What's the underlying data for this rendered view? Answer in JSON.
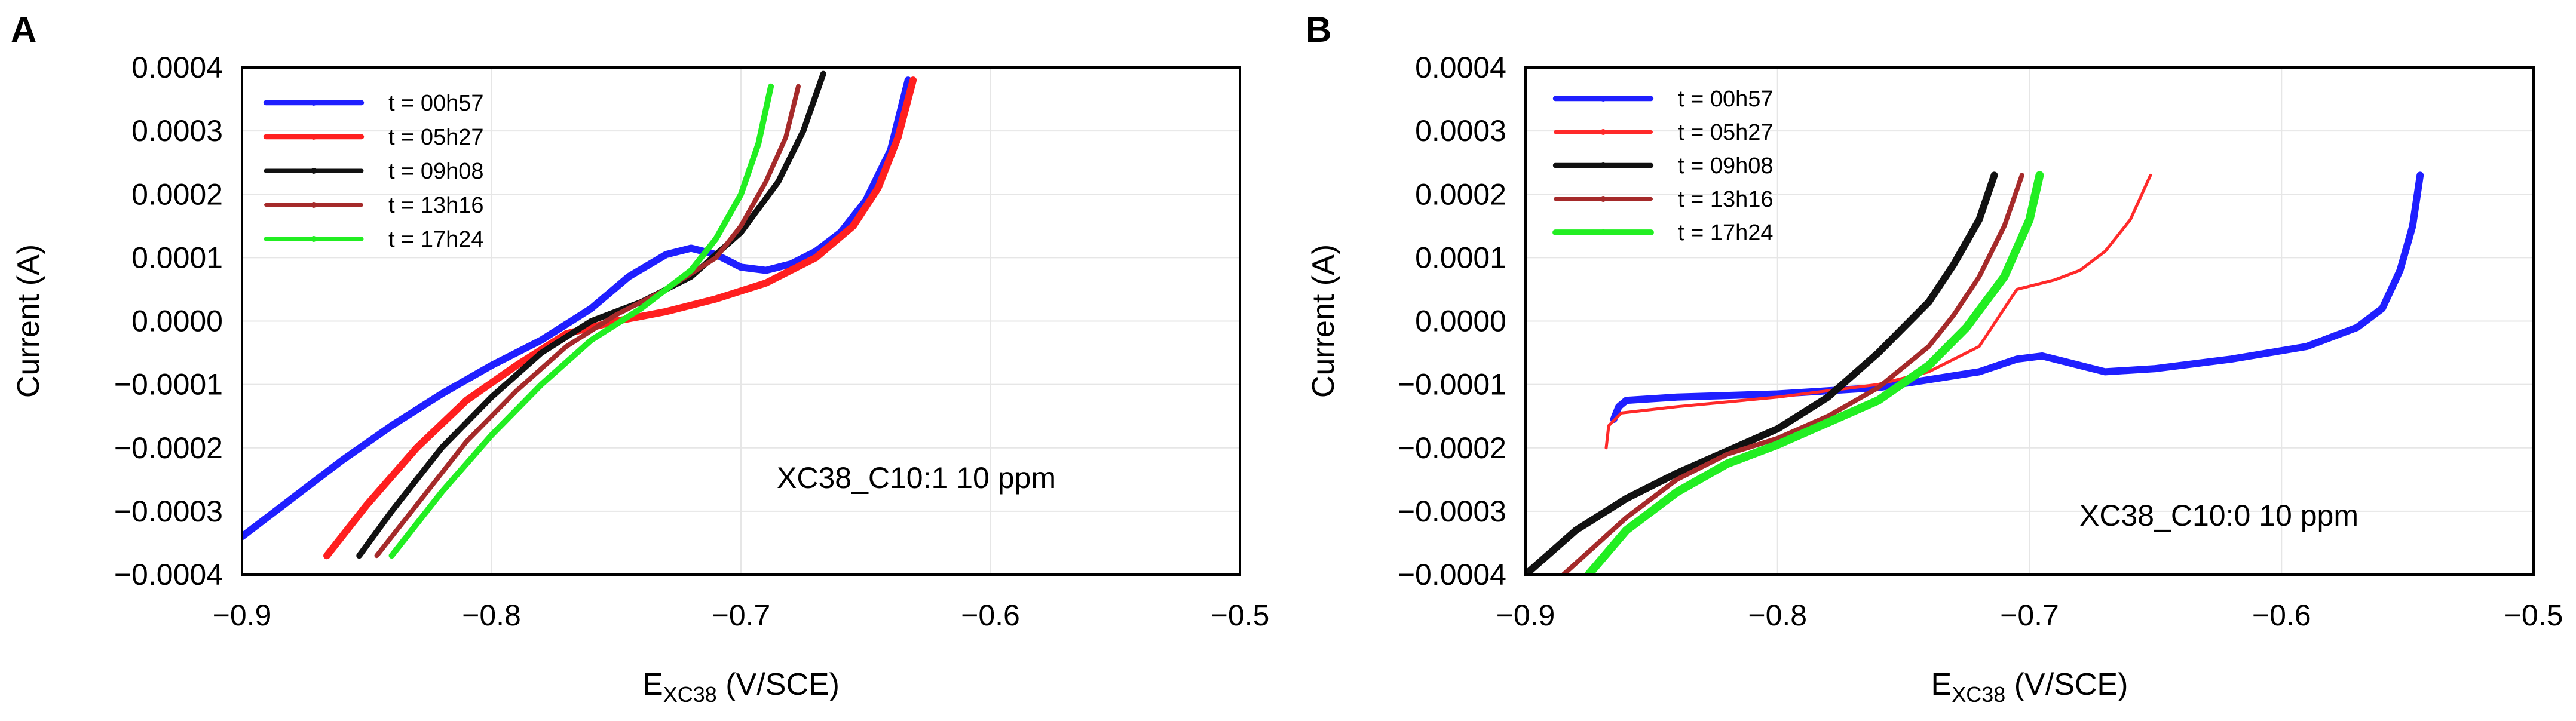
{
  "chart_data": [
    {
      "panel_label": "A",
      "type": "line",
      "xlabel_main": "E",
      "xlabel_sub": "XC38",
      "xlabel_unit": " (V/SCE)",
      "ylabel": "Current (A)",
      "annotation": "XC38_C10:1 10 ppm",
      "xlim": [
        -0.9,
        -0.5
      ],
      "ylim": [
        -0.0004,
        0.0004
      ],
      "x_ticks": [
        "−0.9",
        "−0.8",
        "−0.7",
        "−0.6",
        "−0.5"
      ],
      "x_tick_values": [
        -0.9,
        -0.8,
        -0.7,
        -0.6,
        -0.5
      ],
      "y_ticks": [
        "0.0004",
        "0.0003",
        "0.0002",
        "0.0001",
        "0.0000",
        "−0.0001",
        "−0.0002",
        "−0.0003",
        "−0.0004"
      ],
      "y_tick_values": [
        0.0004,
        0.0003,
        0.0002,
        0.0001,
        0.0,
        -0.0001,
        -0.0002,
        -0.0003,
        -0.0004
      ],
      "legend": "top-left",
      "series": [
        {
          "name": "t = 00h57",
          "color": "#1f1fff",
          "width": 12,
          "x": [
            -0.9,
            -0.88,
            -0.86,
            -0.84,
            -0.82,
            -0.8,
            -0.78,
            -0.76,
            -0.745,
            -0.73,
            -0.72,
            -0.71,
            -0.7,
            -0.69,
            -0.68,
            -0.67,
            -0.66,
            -0.65,
            -0.64,
            -0.633
          ],
          "y": [
            -0.00034,
            -0.00028,
            -0.00022,
            -0.000165,
            -0.000115,
            -7e-05,
            -3e-05,
            2e-05,
            7e-05,
            0.000105,
            0.000115,
            0.000105,
            8.5e-05,
            8e-05,
            9e-05,
            0.00011,
            0.00014,
            0.00019,
            0.00027,
            0.00038
          ]
        },
        {
          "name": "t = 05h27",
          "color": "#ff1f1f",
          "width": 12,
          "x": [
            -0.866,
            -0.85,
            -0.83,
            -0.81,
            -0.79,
            -0.77,
            -0.75,
            -0.73,
            -0.71,
            -0.69,
            -0.67,
            -0.655,
            -0.645,
            -0.637,
            -0.631
          ],
          "y": [
            -0.00037,
            -0.00029,
            -0.0002,
            -0.000125,
            -7e-05,
            -2e-05,
            0.0,
            1.5e-05,
            3.5e-05,
            6e-05,
            0.0001,
            0.00015,
            0.00021,
            0.00029,
            0.00038
          ]
        },
        {
          "name": "t = 09h08",
          "color": "#111111",
          "width": 10,
          "x": [
            -0.853,
            -0.84,
            -0.82,
            -0.8,
            -0.78,
            -0.76,
            -0.74,
            -0.72,
            -0.7,
            -0.685,
            -0.675,
            -0.667
          ],
          "y": [
            -0.00037,
            -0.0003,
            -0.0002,
            -0.00012,
            -5e-05,
            0.0,
            3e-05,
            7e-05,
            0.00014,
            0.00022,
            0.0003,
            0.00039
          ]
        },
        {
          "name": "t = 13h16",
          "color": "#a52a2a",
          "width": 8,
          "x": [
            -0.846,
            -0.83,
            -0.81,
            -0.79,
            -0.77,
            -0.75,
            -0.73,
            -0.71,
            -0.7,
            -0.69,
            -0.682,
            -0.677
          ],
          "y": [
            -0.00037,
            -0.00029,
            -0.00019,
            -0.00011,
            -4e-05,
            1e-05,
            5e-05,
            0.0001,
            0.00015,
            0.00022,
            0.00029,
            0.00037
          ]
        },
        {
          "name": "t = 17h24",
          "color": "#22ee22",
          "width": 10,
          "x": [
            -0.84,
            -0.82,
            -0.8,
            -0.78,
            -0.76,
            -0.74,
            -0.72,
            -0.71,
            -0.7,
            -0.693,
            -0.688
          ],
          "y": [
            -0.00037,
            -0.00027,
            -0.00018,
            -0.0001,
            -3e-05,
            2e-05,
            8e-05,
            0.00013,
            0.0002,
            0.00028,
            0.00037
          ]
        }
      ]
    },
    {
      "panel_label": "B",
      "type": "line",
      "xlabel_main": "E",
      "xlabel_sub": "XC38",
      "xlabel_unit": " (V/SCE)",
      "ylabel": "Current (A)",
      "annotation": "XC38_C10:0 10 ppm",
      "xlim": [
        -0.9,
        -0.5
      ],
      "ylim": [
        -0.0004,
        0.0004
      ],
      "x_ticks": [
        "−0.9",
        "−0.8",
        "−0.7",
        "−0.6",
        "−0.5"
      ],
      "x_tick_values": [
        -0.9,
        -0.8,
        -0.7,
        -0.6,
        -0.5
      ],
      "y_ticks": [
        "0.0004",
        "0.0003",
        "0.0002",
        "0.0001",
        "0.0000",
        "−0.0001",
        "−0.0002",
        "−0.0003",
        "−0.0004"
      ],
      "y_tick_values": [
        0.0004,
        0.0003,
        0.0002,
        0.0001,
        0.0,
        -0.0001,
        -0.0002,
        -0.0003,
        -0.0004
      ],
      "legend": "top-left",
      "series": [
        {
          "name": "t = 00h57",
          "color": "#1f1fff",
          "width": 12,
          "x": [
            -0.865,
            -0.863,
            -0.86,
            -0.84,
            -0.8,
            -0.76,
            -0.72,
            -0.705,
            -0.695,
            -0.685,
            -0.67,
            -0.65,
            -0.62,
            -0.59,
            -0.57,
            -0.56,
            -0.553,
            -0.548,
            -0.545
          ],
          "y": [
            -0.000155,
            -0.000135,
            -0.000125,
            -0.00012,
            -0.000115,
            -0.000105,
            -8e-05,
            -6e-05,
            -5.5e-05,
            -6.5e-05,
            -8e-05,
            -7.5e-05,
            -6e-05,
            -4e-05,
            -1e-05,
            2e-05,
            8e-05,
            0.00015,
            0.00023
          ]
        },
        {
          "name": "t = 05h27",
          "color": "#ff2a2a",
          "width": 5,
          "x": [
            -0.868,
            -0.867,
            -0.862,
            -0.84,
            -0.8,
            -0.76,
            -0.74,
            -0.72,
            -0.705,
            -0.69,
            -0.68,
            -0.67,
            -0.66,
            -0.652
          ],
          "y": [
            -0.0002,
            -0.000165,
            -0.000145,
            -0.000135,
            -0.00012,
            -0.0001,
            -8e-05,
            -4e-05,
            5e-05,
            6.5e-05,
            8e-05,
            0.00011,
            0.00016,
            0.00023
          ]
        },
        {
          "name": "t = 09h08",
          "color": "#111111",
          "width": 12,
          "x": [
            -0.9,
            -0.88,
            -0.86,
            -0.84,
            -0.82,
            -0.8,
            -0.78,
            -0.76,
            -0.74,
            -0.73,
            -0.72,
            -0.714
          ],
          "y": [
            -0.0004,
            -0.00033,
            -0.00028,
            -0.00024,
            -0.000205,
            -0.00017,
            -0.00012,
            -5e-05,
            3e-05,
            9e-05,
            0.00016,
            0.00023
          ]
        },
        {
          "name": "t = 13h16",
          "color": "#a52a2a",
          "width": 8,
          "x": [
            -0.885,
            -0.86,
            -0.84,
            -0.82,
            -0.8,
            -0.78,
            -0.76,
            -0.74,
            -0.73,
            -0.72,
            -0.71,
            -0.703
          ],
          "y": [
            -0.0004,
            -0.00031,
            -0.00025,
            -0.00021,
            -0.000185,
            -0.00015,
            -0.000105,
            -4e-05,
            1e-05,
            7e-05,
            0.00015,
            0.00023
          ]
        },
        {
          "name": "t = 17h24",
          "color": "#22ee22",
          "width": 14,
          "x": [
            -0.875,
            -0.86,
            -0.84,
            -0.82,
            -0.8,
            -0.78,
            -0.76,
            -0.74,
            -0.725,
            -0.71,
            -0.7,
            -0.696
          ],
          "y": [
            -0.0004,
            -0.00033,
            -0.00027,
            -0.000225,
            -0.000195,
            -0.00016,
            -0.000125,
            -7e-05,
            -1e-05,
            7e-05,
            0.00016,
            0.00023
          ]
        }
      ]
    }
  ]
}
